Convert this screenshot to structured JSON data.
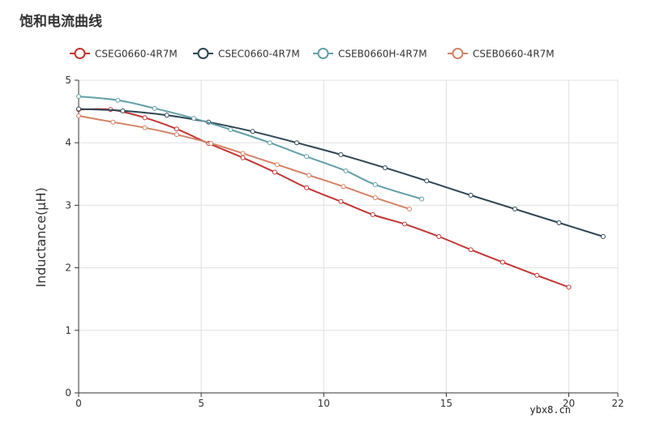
{
  "page": {
    "title": "饱和电流曲线",
    "watermark": "ybx8.cn"
  },
  "chart_data": {
    "type": "line",
    "title": "饱和电流曲线",
    "xlabel": "",
    "ylabel": "Inductance(μH)",
    "xlim": [
      0,
      22
    ],
    "ylim": [
      0,
      5
    ],
    "xticks": [
      0,
      5,
      10,
      15,
      20,
      22
    ],
    "yticks": [
      0,
      1,
      2,
      3,
      4,
      5
    ],
    "grid": true,
    "legend_position": "top-left",
    "series": [
      {
        "name": "CSEG0660-4R7M",
        "color": "#c23531",
        "x": [
          0,
          1.3,
          2.7,
          4.0,
          5.3,
          6.7,
          8.0,
          9.3,
          10.7,
          12.0,
          13.3,
          14.7,
          16.0,
          17.3,
          18.7,
          20.0
        ],
        "y": [
          4.53,
          4.53,
          4.4,
          4.22,
          3.99,
          3.76,
          3.53,
          3.28,
          3.06,
          2.85,
          2.7,
          2.5,
          2.29,
          2.09,
          1.88,
          1.69
        ]
      },
      {
        "name": "CSEC0660-4R7M",
        "color": "#2f4554",
        "x": [
          0,
          1.8,
          3.6,
          5.3,
          7.1,
          8.9,
          10.7,
          12.5,
          14.2,
          16.0,
          17.8,
          19.6,
          21.4
        ],
        "y": [
          4.54,
          4.51,
          4.44,
          4.33,
          4.18,
          4.0,
          3.81,
          3.6,
          3.39,
          3.16,
          2.94,
          2.72,
          2.5
        ]
      },
      {
        "name": "CSEB0660H-4R7M",
        "color": "#61a0a8",
        "x": [
          0,
          1.6,
          3.1,
          4.7,
          6.2,
          7.8,
          9.3,
          10.9,
          12.1,
          14.0
        ],
        "y": [
          4.74,
          4.68,
          4.55,
          4.39,
          4.21,
          4.0,
          3.78,
          3.55,
          3.33,
          3.1
        ]
      },
      {
        "name": "CSEB0660-4R7M",
        "color": "#d48265",
        "x": [
          0,
          1.4,
          2.7,
          4.0,
          5.4,
          6.7,
          8.1,
          9.4,
          10.8,
          12.1,
          13.5
        ],
        "y": [
          4.43,
          4.33,
          4.24,
          4.13,
          3.99,
          3.83,
          3.65,
          3.48,
          3.3,
          3.12,
          2.94
        ]
      }
    ]
  }
}
